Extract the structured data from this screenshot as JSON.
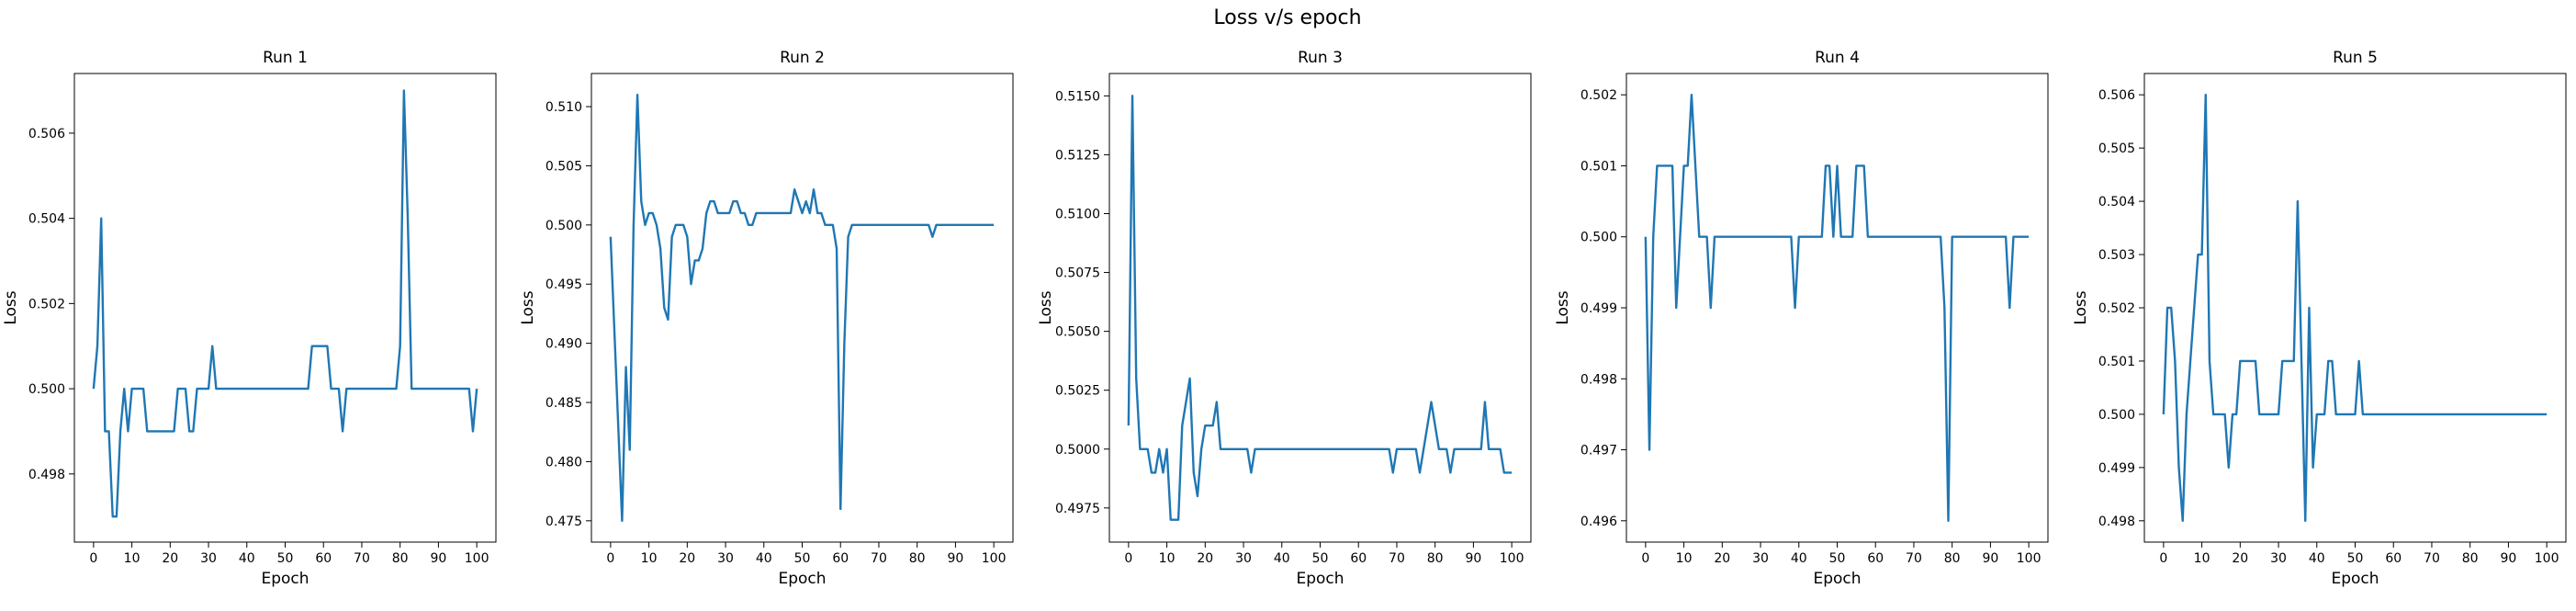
{
  "figure": {
    "title": "Loss v/s epoch"
  },
  "colors": {
    "line": "#1f77b4"
  },
  "chart_data": [
    {
      "type": "line",
      "title": "Run 1",
      "xlabel": "Epoch",
      "ylabel": "Loss",
      "xlim": [
        -5,
        105
      ],
      "ylim": [
        0.4964,
        0.5074
      ],
      "xticks": [
        0,
        10,
        20,
        30,
        40,
        50,
        60,
        70,
        80,
        90,
        100
      ],
      "yticks": [
        0.498,
        0.5,
        0.502,
        0.504,
        0.506
      ],
      "ytick_labels": [
        "0.498",
        "0.500",
        "0.502",
        "0.504",
        "0.506"
      ],
      "grid": false,
      "x": [
        0,
        1,
        2,
        3,
        4,
        5,
        6,
        7,
        8,
        9,
        10,
        11,
        12,
        13,
        14,
        15,
        16,
        17,
        18,
        19,
        20,
        21,
        22,
        23,
        24,
        25,
        26,
        27,
        28,
        29,
        30,
        31,
        32,
        33,
        34,
        35,
        36,
        37,
        38,
        39,
        40,
        41,
        42,
        43,
        44,
        45,
        46,
        47,
        48,
        49,
        50,
        51,
        52,
        53,
        54,
        55,
        56,
        57,
        58,
        59,
        60,
        61,
        62,
        63,
        64,
        65,
        66,
        67,
        68,
        69,
        70,
        71,
        72,
        73,
        74,
        75,
        76,
        77,
        78,
        79,
        80,
        81,
        82,
        83,
        84,
        85,
        86,
        87,
        88,
        89,
        90,
        91,
        92,
        93,
        94,
        95,
        96,
        97,
        98,
        99,
        100
      ],
      "y": [
        0.5,
        0.501,
        0.504,
        0.499,
        0.499,
        0.497,
        0.497,
        0.499,
        0.5,
        0.499,
        0.5,
        0.5,
        0.5,
        0.5,
        0.499,
        0.499,
        0.499,
        0.499,
        0.499,
        0.499,
        0.499,
        0.499,
        0.5,
        0.5,
        0.5,
        0.499,
        0.499,
        0.5,
        0.5,
        0.5,
        0.5,
        0.501,
        0.5,
        0.5,
        0.5,
        0.5,
        0.5,
        0.5,
        0.5,
        0.5,
        0.5,
        0.5,
        0.5,
        0.5,
        0.5,
        0.5,
        0.5,
        0.5,
        0.5,
        0.5,
        0.5,
        0.5,
        0.5,
        0.5,
        0.5,
        0.5,
        0.5,
        0.501,
        0.501,
        0.501,
        0.501,
        0.501,
        0.5,
        0.5,
        0.5,
        0.499,
        0.5,
        0.5,
        0.5,
        0.5,
        0.5,
        0.5,
        0.5,
        0.5,
        0.5,
        0.5,
        0.5,
        0.5,
        0.5,
        0.5,
        0.501,
        0.507,
        0.504,
        0.5,
        0.5,
        0.5,
        0.5,
        0.5,
        0.5,
        0.5,
        0.5,
        0.5,
        0.5,
        0.5,
        0.5,
        0.5,
        0.5,
        0.5,
        0.5,
        0.499,
        0.5
      ]
    },
    {
      "type": "line",
      "title": "Run 2",
      "xlabel": "Epoch",
      "ylabel": "Loss",
      "xlim": [
        -5,
        105
      ],
      "ylim": [
        0.4732,
        0.5128
      ],
      "xticks": [
        0,
        10,
        20,
        30,
        40,
        50,
        60,
        70,
        80,
        90,
        100
      ],
      "yticks": [
        0.475,
        0.48,
        0.485,
        0.49,
        0.495,
        0.5,
        0.505,
        0.51
      ],
      "ytick_labels": [
        "0.475",
        "0.480",
        "0.485",
        "0.490",
        "0.495",
        "0.500",
        "0.505",
        "0.510"
      ],
      "grid": false,
      "x": [
        0,
        1,
        2,
        3,
        4,
        5,
        6,
        7,
        8,
        9,
        10,
        11,
        12,
        13,
        14,
        15,
        16,
        17,
        18,
        19,
        20,
        21,
        22,
        23,
        24,
        25,
        26,
        27,
        28,
        29,
        30,
        31,
        32,
        33,
        34,
        35,
        36,
        37,
        38,
        39,
        40,
        41,
        42,
        43,
        44,
        45,
        46,
        47,
        48,
        49,
        50,
        51,
        52,
        53,
        54,
        55,
        56,
        57,
        58,
        59,
        60,
        61,
        62,
        63,
        64,
        65,
        66,
        67,
        68,
        69,
        70,
        71,
        72,
        73,
        74,
        75,
        76,
        77,
        78,
        79,
        80,
        81,
        82,
        83,
        84,
        85,
        86,
        87,
        88,
        89,
        90,
        91,
        92,
        93,
        94,
        95,
        96,
        97,
        98,
        99,
        100
      ],
      "y": [
        0.499,
        0.491,
        0.483,
        0.475,
        0.488,
        0.481,
        0.5,
        0.511,
        0.502,
        0.5,
        0.501,
        0.501,
        0.5,
        0.498,
        0.493,
        0.492,
        0.499,
        0.5,
        0.5,
        0.5,
        0.499,
        0.495,
        0.497,
        0.497,
        0.498,
        0.501,
        0.502,
        0.502,
        0.501,
        0.501,
        0.501,
        0.501,
        0.502,
        0.502,
        0.501,
        0.501,
        0.5,
        0.5,
        0.501,
        0.501,
        0.501,
        0.501,
        0.501,
        0.501,
        0.501,
        0.501,
        0.501,
        0.501,
        0.503,
        0.502,
        0.501,
        0.502,
        0.501,
        0.503,
        0.501,
        0.501,
        0.5,
        0.5,
        0.5,
        0.498,
        0.476,
        0.49,
        0.499,
        0.5,
        0.5,
        0.5,
        0.5,
        0.5,
        0.5,
        0.5,
        0.5,
        0.5,
        0.5,
        0.5,
        0.5,
        0.5,
        0.5,
        0.5,
        0.5,
        0.5,
        0.5,
        0.5,
        0.5,
        0.5,
        0.499,
        0.5,
        0.5,
        0.5,
        0.5,
        0.5,
        0.5,
        0.5,
        0.5,
        0.5,
        0.5,
        0.5,
        0.5,
        0.5,
        0.5,
        0.5,
        0.5
      ]
    },
    {
      "type": "line",
      "title": "Run 3",
      "xlabel": "Epoch",
      "ylabel": "Loss",
      "xlim": [
        -5,
        105
      ],
      "ylim": [
        0.49605,
        0.51595
      ],
      "xticks": [
        0,
        10,
        20,
        30,
        40,
        50,
        60,
        70,
        80,
        90,
        100
      ],
      "yticks": [
        0.4975,
        0.5,
        0.5025,
        0.505,
        0.5075,
        0.51,
        0.5125,
        0.515
      ],
      "ytick_labels": [
        "0.4975",
        "0.5000",
        "0.5025",
        "0.5050",
        "0.5075",
        "0.5100",
        "0.5125",
        "0.5150"
      ],
      "grid": false,
      "x": [
        0,
        1,
        2,
        3,
        4,
        5,
        6,
        7,
        8,
        9,
        10,
        11,
        12,
        13,
        14,
        15,
        16,
        17,
        18,
        19,
        20,
        21,
        22,
        23,
        24,
        25,
        26,
        27,
        28,
        29,
        30,
        31,
        32,
        33,
        34,
        35,
        36,
        37,
        38,
        39,
        40,
        41,
        42,
        43,
        44,
        45,
        46,
        47,
        48,
        49,
        50,
        51,
        52,
        53,
        54,
        55,
        56,
        57,
        58,
        59,
        60,
        61,
        62,
        63,
        64,
        65,
        66,
        67,
        68,
        69,
        70,
        71,
        72,
        73,
        74,
        75,
        76,
        77,
        78,
        79,
        80,
        81,
        82,
        83,
        84,
        85,
        86,
        87,
        88,
        89,
        90,
        91,
        92,
        93,
        94,
        95,
        96,
        97,
        98,
        99,
        100
      ],
      "y": [
        0.501,
        0.515,
        0.503,
        0.5,
        0.5,
        0.5,
        0.499,
        0.499,
        0.5,
        0.499,
        0.5,
        0.497,
        0.497,
        0.497,
        0.501,
        0.502,
        0.503,
        0.499,
        0.498,
        0.5,
        0.501,
        0.501,
        0.501,
        0.502,
        0.5,
        0.5,
        0.5,
        0.5,
        0.5,
        0.5,
        0.5,
        0.5,
        0.499,
        0.5,
        0.5,
        0.5,
        0.5,
        0.5,
        0.5,
        0.5,
        0.5,
        0.5,
        0.5,
        0.5,
        0.5,
        0.5,
        0.5,
        0.5,
        0.5,
        0.5,
        0.5,
        0.5,
        0.5,
        0.5,
        0.5,
        0.5,
        0.5,
        0.5,
        0.5,
        0.5,
        0.5,
        0.5,
        0.5,
        0.5,
        0.5,
        0.5,
        0.5,
        0.5,
        0.5,
        0.499,
        0.5,
        0.5,
        0.5,
        0.5,
        0.5,
        0.5,
        0.499,
        0.5,
        0.501,
        0.502,
        0.501,
        0.5,
        0.5,
        0.5,
        0.499,
        0.5,
        0.5,
        0.5,
        0.5,
        0.5,
        0.5,
        0.5,
        0.5,
        0.502,
        0.5,
        0.5,
        0.5,
        0.5,
        0.499,
        0.499,
        0.499
      ]
    },
    {
      "type": "line",
      "title": "Run 4",
      "xlabel": "Epoch",
      "ylabel": "Loss",
      "xlim": [
        -5,
        105
      ],
      "ylim": [
        0.4957,
        0.5023
      ],
      "xticks": [
        0,
        10,
        20,
        30,
        40,
        50,
        60,
        70,
        80,
        90,
        100
      ],
      "yticks": [
        0.496,
        0.497,
        0.498,
        0.499,
        0.5,
        0.501,
        0.502
      ],
      "ytick_labels": [
        "0.496",
        "0.497",
        "0.498",
        "0.499",
        "0.500",
        "0.501",
        "0.502"
      ],
      "grid": false,
      "x": [
        0,
        1,
        2,
        3,
        4,
        5,
        6,
        7,
        8,
        9,
        10,
        11,
        12,
        13,
        14,
        15,
        16,
        17,
        18,
        19,
        20,
        21,
        22,
        23,
        24,
        25,
        26,
        27,
        28,
        29,
        30,
        31,
        32,
        33,
        34,
        35,
        36,
        37,
        38,
        39,
        40,
        41,
        42,
        43,
        44,
        45,
        46,
        47,
        48,
        49,
        50,
        51,
        52,
        53,
        54,
        55,
        56,
        57,
        58,
        59,
        60,
        61,
        62,
        63,
        64,
        65,
        66,
        67,
        68,
        69,
        70,
        71,
        72,
        73,
        74,
        75,
        76,
        77,
        78,
        79,
        80,
        81,
        82,
        83,
        84,
        85,
        86,
        87,
        88,
        89,
        90,
        91,
        92,
        93,
        94,
        95,
        96,
        97,
        98,
        99,
        100
      ],
      "y": [
        0.5,
        0.497,
        0.5,
        0.501,
        0.501,
        0.501,
        0.501,
        0.501,
        0.499,
        0.5,
        0.501,
        0.501,
        0.502,
        0.501,
        0.5,
        0.5,
        0.5,
        0.499,
        0.5,
        0.5,
        0.5,
        0.5,
        0.5,
        0.5,
        0.5,
        0.5,
        0.5,
        0.5,
        0.5,
        0.5,
        0.5,
        0.5,
        0.5,
        0.5,
        0.5,
        0.5,
        0.5,
        0.5,
        0.5,
        0.499,
        0.5,
        0.5,
        0.5,
        0.5,
        0.5,
        0.5,
        0.5,
        0.501,
        0.501,
        0.5,
        0.501,
        0.5,
        0.5,
        0.5,
        0.5,
        0.501,
        0.501,
        0.501,
        0.5,
        0.5,
        0.5,
        0.5,
        0.5,
        0.5,
        0.5,
        0.5,
        0.5,
        0.5,
        0.5,
        0.5,
        0.5,
        0.5,
        0.5,
        0.5,
        0.5,
        0.5,
        0.5,
        0.5,
        0.499,
        0.496,
        0.5,
        0.5,
        0.5,
        0.5,
        0.5,
        0.5,
        0.5,
        0.5,
        0.5,
        0.5,
        0.5,
        0.5,
        0.5,
        0.5,
        0.5,
        0.499,
        0.5,
        0.5,
        0.5,
        0.5,
        0.5
      ]
    },
    {
      "type": "line",
      "title": "Run 5",
      "xlabel": "Epoch",
      "ylabel": "Loss",
      "xlim": [
        -5,
        105
      ],
      "ylim": [
        0.4976,
        0.5064
      ],
      "xticks": [
        0,
        10,
        20,
        30,
        40,
        50,
        60,
        70,
        80,
        90,
        100
      ],
      "yticks": [
        0.498,
        0.499,
        0.5,
        0.501,
        0.502,
        0.503,
        0.504,
        0.505,
        0.506
      ],
      "ytick_labels": [
        "0.498",
        "0.499",
        "0.500",
        "0.501",
        "0.502",
        "0.503",
        "0.504",
        "0.505",
        "0.506"
      ],
      "grid": false,
      "x": [
        0,
        1,
        2,
        3,
        4,
        5,
        6,
        7,
        8,
        9,
        10,
        11,
        12,
        13,
        14,
        15,
        16,
        17,
        18,
        19,
        20,
        21,
        22,
        23,
        24,
        25,
        26,
        27,
        28,
        29,
        30,
        31,
        32,
        33,
        34,
        35,
        36,
        37,
        38,
        39,
        40,
        41,
        42,
        43,
        44,
        45,
        46,
        47,
        48,
        49,
        50,
        51,
        52,
        53,
        54,
        55,
        56,
        57,
        58,
        59,
        60,
        61,
        62,
        63,
        64,
        65,
        66,
        67,
        68,
        69,
        70,
        71,
        72,
        73,
        74,
        75,
        76,
        77,
        78,
        79,
        80,
        81,
        82,
        83,
        84,
        85,
        86,
        87,
        88,
        89,
        90,
        91,
        92,
        93,
        94,
        95,
        96,
        97,
        98,
        99,
        100
      ],
      "y": [
        0.5,
        0.502,
        0.502,
        0.501,
        0.499,
        0.498,
        0.5,
        0.501,
        0.502,
        0.503,
        0.503,
        0.506,
        0.501,
        0.5,
        0.5,
        0.5,
        0.5,
        0.499,
        0.5,
        0.5,
        0.501,
        0.501,
        0.501,
        0.501,
        0.501,
        0.5,
        0.5,
        0.5,
        0.5,
        0.5,
        0.5,
        0.501,
        0.501,
        0.501,
        0.501,
        0.504,
        0.501,
        0.498,
        0.502,
        0.499,
        0.5,
        0.5,
        0.5,
        0.501,
        0.501,
        0.5,
        0.5,
        0.5,
        0.5,
        0.5,
        0.5,
        0.501,
        0.5,
        0.5,
        0.5,
        0.5,
        0.5,
        0.5,
        0.5,
        0.5,
        0.5,
        0.5,
        0.5,
        0.5,
        0.5,
        0.5,
        0.5,
        0.5,
        0.5,
        0.5,
        0.5,
        0.5,
        0.5,
        0.5,
        0.5,
        0.5,
        0.5,
        0.5,
        0.5,
        0.5,
        0.5,
        0.5,
        0.5,
        0.5,
        0.5,
        0.5,
        0.5,
        0.5,
        0.5,
        0.5,
        0.5,
        0.5,
        0.5,
        0.5,
        0.5,
        0.5,
        0.5,
        0.5,
        0.5,
        0.5,
        0.5
      ]
    }
  ]
}
